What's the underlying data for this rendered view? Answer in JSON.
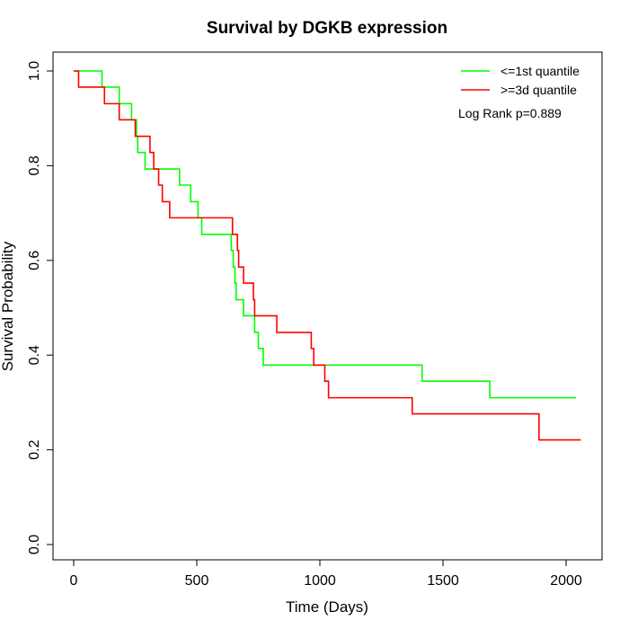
{
  "chart_data": {
    "type": "line",
    "step": true,
    "title": "Survival by DGKB expression",
    "xlabel": "Time (Days)",
    "ylabel": "Survival Probability",
    "xlim": [
      0,
      2060
    ],
    "ylim": [
      0,
      1
    ],
    "x_ticks": [
      0,
      500,
      1000,
      1500,
      2000
    ],
    "y_ticks": [
      0.0,
      0.2,
      0.4,
      0.6,
      0.8,
      1.0
    ],
    "x_tick_labels": [
      "0",
      "500",
      "1000",
      "1500",
      "2000"
    ],
    "y_tick_labels": [
      "0.0",
      "0.2",
      "0.4",
      "0.6",
      "0.8",
      "1.0"
    ],
    "grid": false,
    "legend_position": "top-right",
    "annotation": "Log Rank p=0.889",
    "series": [
      {
        "name": "<=1st quantile",
        "color": "#00ff00",
        "points": [
          [
            0,
            1.0
          ],
          [
            115,
            0.966
          ],
          [
            185,
            0.931
          ],
          [
            235,
            0.897
          ],
          [
            255,
            0.862
          ],
          [
            260,
            0.828
          ],
          [
            290,
            0.793
          ],
          [
            430,
            0.759
          ],
          [
            475,
            0.724
          ],
          [
            505,
            0.69
          ],
          [
            520,
            0.655
          ],
          [
            640,
            0.621
          ],
          [
            648,
            0.586
          ],
          [
            655,
            0.552
          ],
          [
            660,
            0.517
          ],
          [
            690,
            0.483
          ],
          [
            735,
            0.448
          ],
          [
            750,
            0.414
          ],
          [
            770,
            0.379
          ],
          [
            1415,
            0.345
          ],
          [
            1690,
            0.31
          ],
          [
            2040,
            0.31
          ]
        ]
      },
      {
        "name": ">=3d quantile",
        "color": "#ff0000",
        "points": [
          [
            0,
            1.0
          ],
          [
            20,
            0.966
          ],
          [
            125,
            0.931
          ],
          [
            185,
            0.897
          ],
          [
            250,
            0.862
          ],
          [
            310,
            0.828
          ],
          [
            325,
            0.793
          ],
          [
            345,
            0.759
          ],
          [
            360,
            0.724
          ],
          [
            390,
            0.69
          ],
          [
            645,
            0.655
          ],
          [
            665,
            0.621
          ],
          [
            670,
            0.586
          ],
          [
            690,
            0.552
          ],
          [
            730,
            0.517
          ],
          [
            735,
            0.483
          ],
          [
            825,
            0.448
          ],
          [
            965,
            0.414
          ],
          [
            975,
            0.379
          ],
          [
            1020,
            0.345
          ],
          [
            1035,
            0.31
          ],
          [
            1375,
            0.276
          ],
          [
            1890,
            0.221
          ],
          [
            2060,
            0.221
          ]
        ]
      }
    ]
  }
}
